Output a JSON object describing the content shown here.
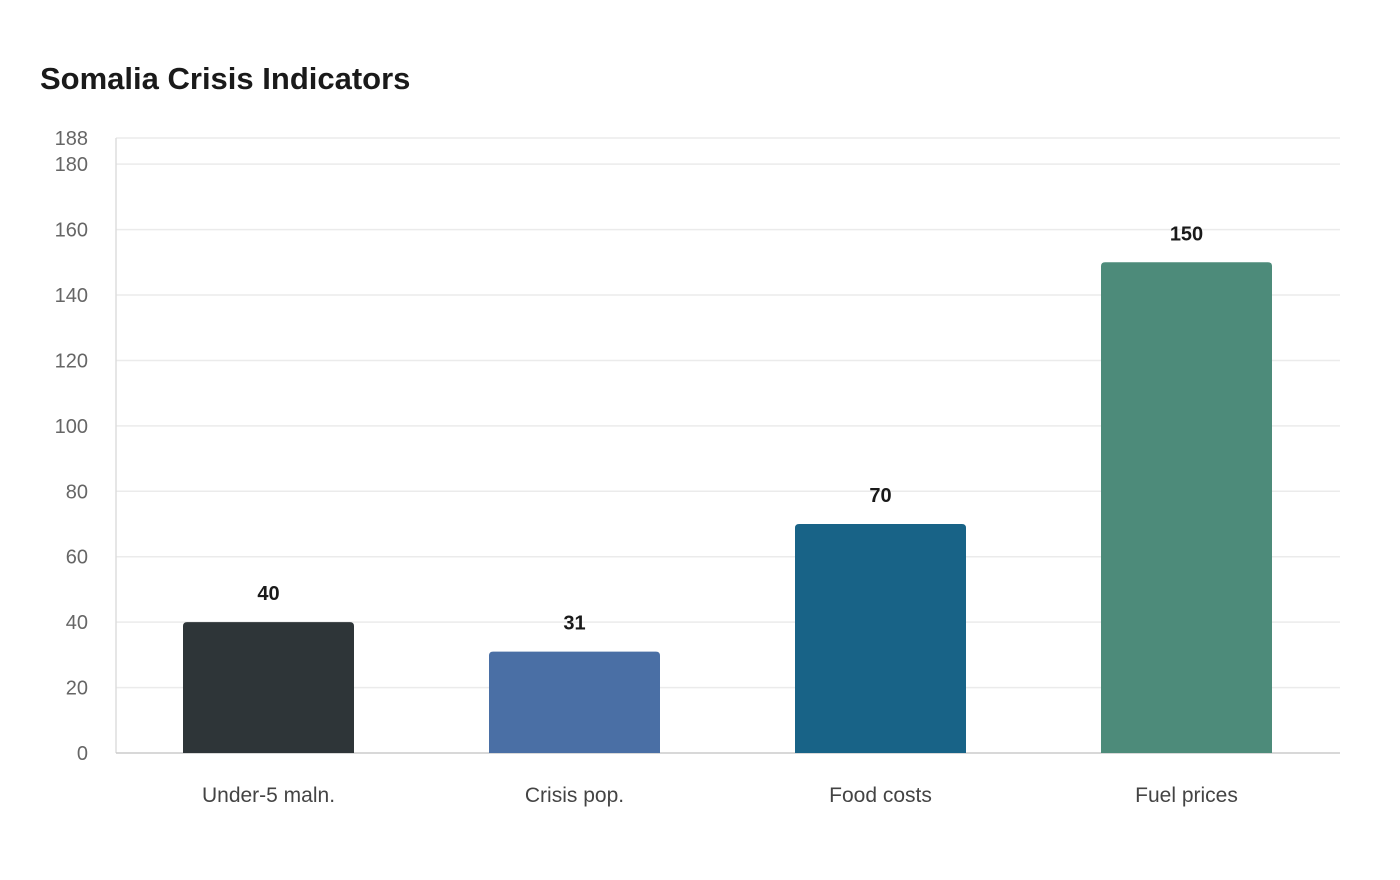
{
  "chart_data": {
    "type": "bar",
    "title": "Somalia Crisis Indicators",
    "xlabel": "",
    "ylabel": "",
    "categories": [
      "Under-5 maln.",
      "Crisis pop.",
      "Food costs",
      "Fuel prices"
    ],
    "values": [
      40,
      31,
      70,
      150
    ],
    "value_labels": [
      "40",
      "31",
      "70",
      "150"
    ],
    "colors": [
      "#2e3538",
      "#4a6fa5",
      "#186387",
      "#4d8b7a"
    ],
    "ylim": [
      0,
      188
    ],
    "yticks": [
      0,
      20,
      40,
      60,
      80,
      100,
      120,
      140,
      160,
      180,
      188
    ],
    "ytick_labels": [
      "0",
      "20",
      "40",
      "60",
      "80",
      "100",
      "120",
      "140",
      "160",
      "180",
      "188"
    ],
    "grid": true,
    "legend": "none"
  }
}
